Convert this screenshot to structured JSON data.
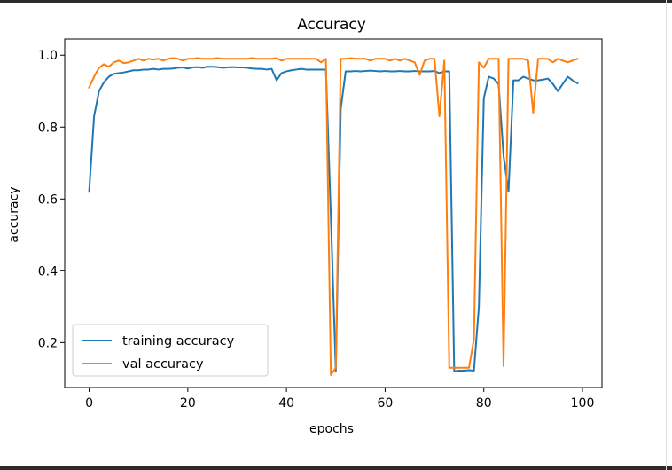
{
  "chart_data": {
    "type": "line",
    "title": "Accuracy",
    "xlabel": "epochs",
    "ylabel": "accuracy",
    "xlim": [
      -4.95,
      103.95
    ],
    "ylim": [
      0.075,
      1.045
    ],
    "xticks": [
      0,
      20,
      40,
      60,
      80,
      100
    ],
    "yticks": [
      0.2,
      0.4,
      0.6,
      0.8,
      1.0
    ],
    "xtick_labels": [
      "0",
      "20",
      "40",
      "60",
      "80",
      "100"
    ],
    "ytick_labels": [
      "0.2",
      "0.4",
      "0.6",
      "0.8",
      "1.0"
    ],
    "grid": false,
    "legend_position": "lower-left",
    "series": [
      {
        "name": "training accuracy",
        "color": "#1f77b4",
        "x": [
          0,
          1,
          2,
          3,
          4,
          5,
          6,
          7,
          8,
          9,
          10,
          11,
          12,
          13,
          14,
          15,
          16,
          17,
          18,
          19,
          20,
          21,
          22,
          23,
          24,
          25,
          26,
          27,
          28,
          29,
          30,
          31,
          32,
          33,
          34,
          35,
          36,
          37,
          38,
          39,
          40,
          41,
          42,
          43,
          44,
          45,
          46,
          47,
          48,
          49,
          50,
          51,
          52,
          53,
          54,
          55,
          56,
          57,
          58,
          59,
          60,
          61,
          62,
          63,
          64,
          65,
          66,
          67,
          68,
          69,
          70,
          71,
          72,
          73,
          74,
          75,
          76,
          77,
          78,
          79,
          80,
          81,
          82,
          83,
          84,
          85,
          86,
          87,
          88,
          89,
          90,
          91,
          92,
          93,
          94,
          95,
          96,
          97,
          98,
          99
        ],
        "values": [
          0.62,
          0.83,
          0.9,
          0.925,
          0.94,
          0.948,
          0.95,
          0.952,
          0.955,
          0.958,
          0.958,
          0.96,
          0.96,
          0.962,
          0.96,
          0.962,
          0.962,
          0.963,
          0.965,
          0.966,
          0.963,
          0.966,
          0.967,
          0.965,
          0.968,
          0.968,
          0.967,
          0.965,
          0.966,
          0.967,
          0.966,
          0.966,
          0.965,
          0.963,
          0.962,
          0.962,
          0.96,
          0.962,
          0.93,
          0.95,
          0.955,
          0.958,
          0.96,
          0.962,
          0.96,
          0.96,
          0.96,
          0.96,
          0.96,
          0.55,
          0.12,
          0.85,
          0.955,
          0.955,
          0.956,
          0.955,
          0.956,
          0.957,
          0.956,
          0.955,
          0.956,
          0.955,
          0.955,
          0.956,
          0.955,
          0.955,
          0.956,
          0.955,
          0.955,
          0.955,
          0.956,
          0.95,
          0.955,
          0.955,
          0.12,
          0.122,
          0.122,
          0.123,
          0.122,
          0.3,
          0.88,
          0.94,
          0.935,
          0.92,
          0.72,
          0.62,
          0.93,
          0.93,
          0.94,
          0.935,
          0.93,
          0.93,
          0.932,
          0.935,
          0.92,
          0.9,
          0.92,
          0.94,
          0.93,
          0.922
        ]
      },
      {
        "name": "val accuracy",
        "color": "#ff7f0e",
        "x": [
          0,
          1,
          2,
          3,
          4,
          5,
          6,
          7,
          8,
          9,
          10,
          11,
          12,
          13,
          14,
          15,
          16,
          17,
          18,
          19,
          20,
          21,
          22,
          23,
          24,
          25,
          26,
          27,
          28,
          29,
          30,
          31,
          32,
          33,
          34,
          35,
          36,
          37,
          38,
          39,
          40,
          41,
          42,
          43,
          44,
          45,
          46,
          47,
          48,
          49,
          50,
          51,
          52,
          53,
          54,
          55,
          56,
          57,
          58,
          59,
          60,
          61,
          62,
          63,
          64,
          65,
          66,
          67,
          68,
          69,
          70,
          71,
          72,
          73,
          74,
          75,
          76,
          77,
          78,
          79,
          80,
          81,
          82,
          83,
          84,
          85,
          86,
          87,
          88,
          89,
          90,
          91,
          92,
          93,
          94,
          95,
          96,
          97,
          98,
          99
        ],
        "values": [
          0.91,
          0.94,
          0.965,
          0.975,
          0.968,
          0.98,
          0.985,
          0.978,
          0.98,
          0.985,
          0.99,
          0.985,
          0.99,
          0.988,
          0.99,
          0.985,
          0.99,
          0.992,
          0.99,
          0.985,
          0.99,
          0.99,
          0.992,
          0.99,
          0.99,
          0.99,
          0.992,
          0.99,
          0.99,
          0.99,
          0.99,
          0.99,
          0.99,
          0.992,
          0.99,
          0.99,
          0.99,
          0.99,
          0.992,
          0.985,
          0.99,
          0.99,
          0.99,
          0.99,
          0.99,
          0.99,
          0.99,
          0.98,
          0.99,
          0.11,
          0.13,
          0.99,
          0.99,
          0.992,
          0.99,
          0.99,
          0.99,
          0.985,
          0.99,
          0.99,
          0.99,
          0.985,
          0.99,
          0.985,
          0.99,
          0.985,
          0.98,
          0.945,
          0.985,
          0.99,
          0.99,
          0.83,
          0.985,
          0.13,
          0.13,
          0.13,
          0.13,
          0.13,
          0.21,
          0.98,
          0.965,
          0.99,
          0.99,
          0.99,
          0.135,
          0.99,
          0.99,
          0.99,
          0.99,
          0.985,
          0.84,
          0.99,
          0.99,
          0.99,
          0.98,
          0.99,
          0.985,
          0.98,
          0.985,
          0.99
        ]
      }
    ]
  }
}
